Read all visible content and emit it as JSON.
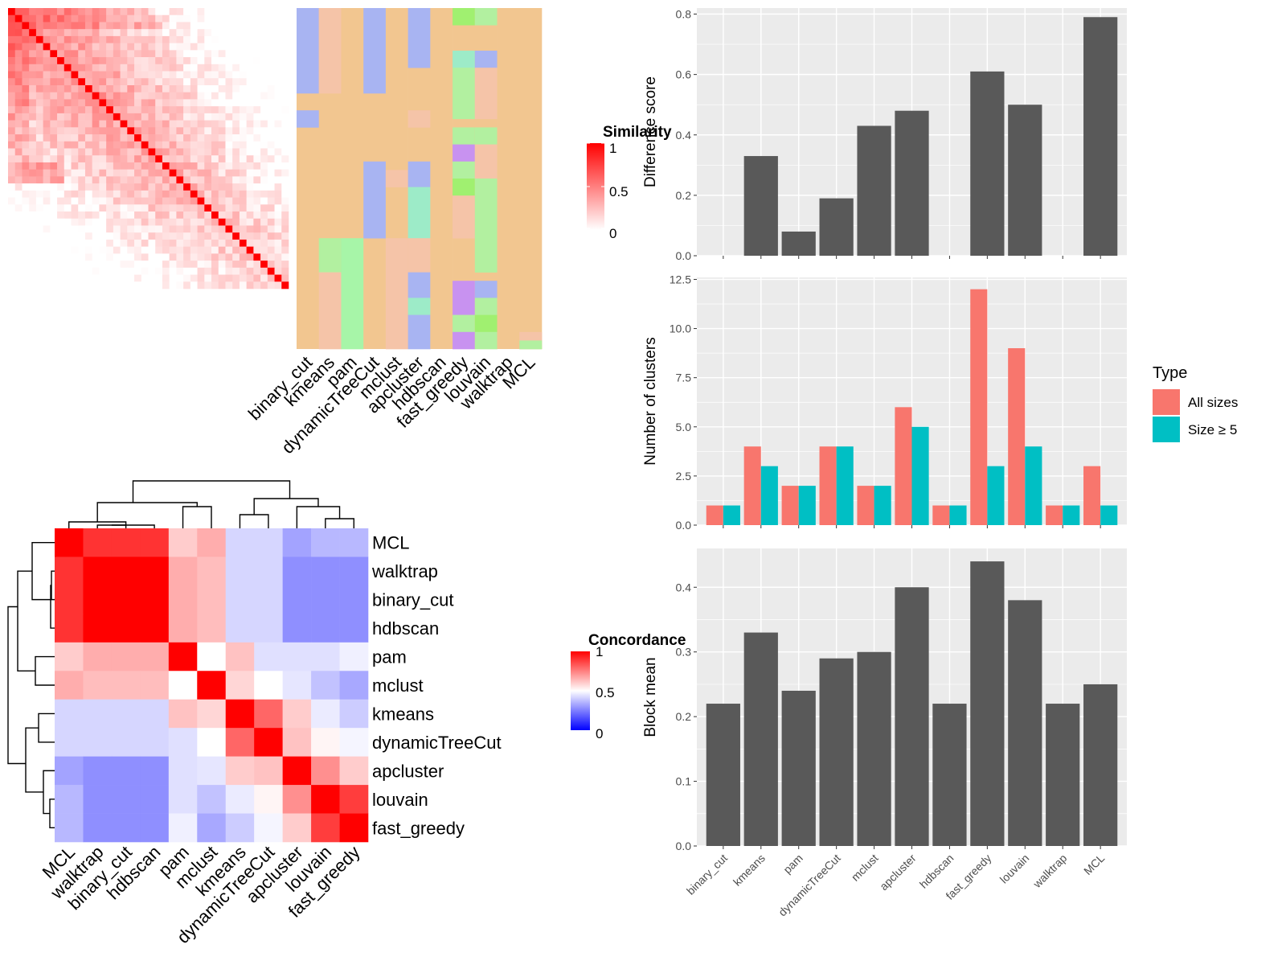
{
  "methods": [
    "binary_cut",
    "kmeans",
    "pam",
    "dynamicTreeCut",
    "mclust",
    "apcluster",
    "hdbscan",
    "fast_greedy",
    "louvain",
    "walktrap",
    "MCL"
  ],
  "similarity_panel": {
    "legend_title": "Similarity",
    "legend_ticks": [
      "1",
      "0.5",
      "0"
    ],
    "column_labels": [
      "binary_cut",
      "kmeans",
      "pam",
      "dynamicTreeCut",
      "mclust",
      "apcluster",
      "hdbscan",
      "fast_greedy",
      "louvain",
      "walktrap",
      "MCL"
    ]
  },
  "concordance_panel": {
    "legend_title": "Concordance",
    "legend_ticks": [
      "1",
      "0.5",
      "0"
    ],
    "order": [
      "MCL",
      "walktrap",
      "binary_cut",
      "hdbscan",
      "pam",
      "mclust",
      "kmeans",
      "dynamicTreeCut",
      "apcluster",
      "louvain",
      "fast_greedy"
    ]
  },
  "chart_data": [
    {
      "type": "heatmap",
      "name": "concordance",
      "rows": [
        "MCL",
        "walktrap",
        "binary_cut",
        "hdbscan",
        "pam",
        "mclust",
        "kmeans",
        "dynamicTreeCut",
        "apcluster",
        "louvain",
        "fast_greedy"
      ],
      "cols": [
        "MCL",
        "walktrap",
        "binary_cut",
        "hdbscan",
        "pam",
        "mclust",
        "kmeans",
        "dynamicTreeCut",
        "apcluster",
        "louvain",
        "fast_greedy"
      ],
      "values": [
        [
          1.0,
          0.9,
          0.9,
          0.9,
          0.6,
          0.66,
          0.42,
          0.42,
          0.32,
          0.36,
          0.36
        ],
        [
          0.9,
          1.0,
          1.0,
          1.0,
          0.66,
          0.63,
          0.42,
          0.42,
          0.28,
          0.28,
          0.28
        ],
        [
          0.9,
          1.0,
          1.0,
          1.0,
          0.66,
          0.63,
          0.42,
          0.42,
          0.28,
          0.28,
          0.28
        ],
        [
          0.9,
          1.0,
          1.0,
          1.0,
          0.66,
          0.63,
          0.42,
          0.42,
          0.28,
          0.28,
          0.28
        ],
        [
          0.6,
          0.66,
          0.66,
          0.66,
          1.0,
          0.5,
          0.62,
          0.44,
          0.44,
          0.44,
          0.47
        ],
        [
          0.66,
          0.63,
          0.63,
          0.63,
          0.5,
          1.0,
          0.58,
          0.5,
          0.45,
          0.38,
          0.33
        ],
        [
          0.42,
          0.42,
          0.42,
          0.42,
          0.62,
          0.58,
          1.0,
          0.8,
          0.6,
          0.46,
          0.4
        ],
        [
          0.42,
          0.42,
          0.42,
          0.42,
          0.44,
          0.5,
          0.8,
          1.0,
          0.62,
          0.52,
          0.48
        ],
        [
          0.32,
          0.28,
          0.28,
          0.28,
          0.44,
          0.45,
          0.6,
          0.62,
          1.0,
          0.72,
          0.6
        ],
        [
          0.36,
          0.28,
          0.28,
          0.28,
          0.44,
          0.38,
          0.46,
          0.52,
          0.72,
          1.0,
          0.88
        ],
        [
          0.36,
          0.28,
          0.28,
          0.28,
          0.47,
          0.33,
          0.4,
          0.48,
          0.6,
          0.88,
          1.0
        ]
      ],
      "color_scale": {
        "low": "#0000ff",
        "mid": "#ffffff",
        "high": "#ff0000",
        "range": [
          0,
          1
        ]
      }
    },
    {
      "type": "bar",
      "name": "difference_score",
      "categories": [
        "binary_cut",
        "kmeans",
        "pam",
        "dynamicTreeCut",
        "mclust",
        "apcluster",
        "hdbscan",
        "fast_greedy",
        "louvain",
        "walktrap",
        "MCL"
      ],
      "values": [
        0,
        0.33,
        0.08,
        0.19,
        0.43,
        0.48,
        0,
        0.61,
        0.5,
        0,
        0.79
      ],
      "ylabel": "Difference score",
      "ylim": [
        0,
        0.82
      ],
      "yticks": [
        "0.0",
        "0.2",
        "0.4",
        "0.6",
        "0.8"
      ],
      "color": "#595959"
    },
    {
      "type": "bar",
      "name": "number_of_clusters",
      "categories": [
        "binary_cut",
        "kmeans",
        "pam",
        "dynamicTreeCut",
        "mclust",
        "apcluster",
        "hdbscan",
        "fast_greedy",
        "louvain",
        "walktrap",
        "MCL"
      ],
      "series": [
        {
          "name": "All sizes",
          "values": [
            1,
            4,
            2,
            4,
            2,
            6,
            1,
            12,
            9,
            1,
            3
          ],
          "color": "#F8766D"
        },
        {
          "name": "Size ≥ 5",
          "values": [
            1,
            3,
            2,
            4,
            2,
            5,
            1,
            3,
            4,
            1,
            1
          ],
          "color": "#00BFC4"
        }
      ],
      "ylabel": "Number of clusters",
      "ylim": [
        0,
        12.6
      ],
      "yticks": [
        "0.0",
        "2.5",
        "5.0",
        "7.5",
        "10.0",
        "12.5"
      ],
      "legend_title": "Type",
      "legend_position": "right"
    },
    {
      "type": "bar",
      "name": "block_mean",
      "categories": [
        "binary_cut",
        "kmeans",
        "pam",
        "dynamicTreeCut",
        "mclust",
        "apcluster",
        "hdbscan",
        "fast_greedy",
        "louvain",
        "walktrap",
        "MCL"
      ],
      "values": [
        0.22,
        0.33,
        0.24,
        0.29,
        0.3,
        0.4,
        0.22,
        0.44,
        0.38,
        0.22,
        0.25
      ],
      "ylabel": "Block mean",
      "ylim": [
        0,
        0.46
      ],
      "yticks": [
        "0.0",
        "0.1",
        "0.2",
        "0.3",
        "0.4"
      ],
      "color": "#595959"
    }
  ]
}
